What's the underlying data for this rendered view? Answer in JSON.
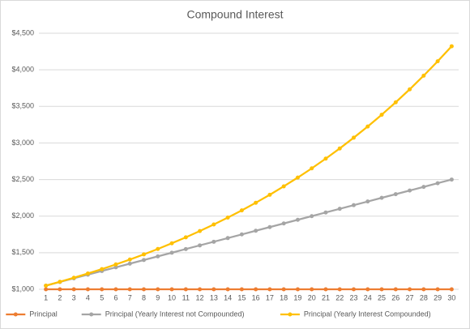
{
  "chart_data": {
    "type": "line",
    "title": "Compound Interest",
    "categories": [
      "1",
      "2",
      "3",
      "4",
      "5",
      "6",
      "7",
      "8",
      "9",
      "10",
      "11",
      "12",
      "13",
      "14",
      "15",
      "16",
      "17",
      "18",
      "19",
      "20",
      "21",
      "22",
      "23",
      "24",
      "25",
      "26",
      "27",
      "28",
      "29",
      "30"
    ],
    "series": [
      {
        "name": "Principal",
        "color": "#ed7d31",
        "values": [
          1000,
          1000,
          1000,
          1000,
          1000,
          1000,
          1000,
          1000,
          1000,
          1000,
          1000,
          1000,
          1000,
          1000,
          1000,
          1000,
          1000,
          1000,
          1000,
          1000,
          1000,
          1000,
          1000,
          1000,
          1000,
          1000,
          1000,
          1000,
          1000,
          1000
        ]
      },
      {
        "name": "Principal (Yearly Interest not Compounded)",
        "color": "#a5a5a5",
        "values": [
          1050,
          1100,
          1150,
          1200,
          1250,
          1300,
          1350,
          1400,
          1450,
          1500,
          1550,
          1600,
          1650,
          1700,
          1750,
          1800,
          1850,
          1900,
          1950,
          2000,
          2050,
          2100,
          2150,
          2200,
          2250,
          2300,
          2350,
          2400,
          2450,
          2500
        ]
      },
      {
        "name": "Principal (Yearly Interest Compounded)",
        "color": "#ffc000",
        "values": [
          1050,
          1103,
          1158,
          1216,
          1276,
          1340,
          1407,
          1477,
          1551,
          1629,
          1710,
          1796,
          1886,
          1980,
          2079,
          2183,
          2292,
          2407,
          2527,
          2653,
          2786,
          2925,
          3072,
          3225,
          3386,
          3556,
          3733,
          3920,
          4116,
          4322
        ]
      }
    ],
    "ylim": [
      1000,
      4500
    ],
    "yticks": [
      {
        "value": 1000,
        "label": "$1,000"
      },
      {
        "value": 1500,
        "label": "$1,500"
      },
      {
        "value": 2000,
        "label": "$2,000"
      },
      {
        "value": 2500,
        "label": "$2,500"
      },
      {
        "value": 3000,
        "label": "$3,000"
      },
      {
        "value": 3500,
        "label": "$3,500"
      },
      {
        "value": 4000,
        "label": "$4,000"
      },
      {
        "value": 4500,
        "label": "$4,500"
      }
    ],
    "grid": true,
    "legend": "bottom"
  }
}
